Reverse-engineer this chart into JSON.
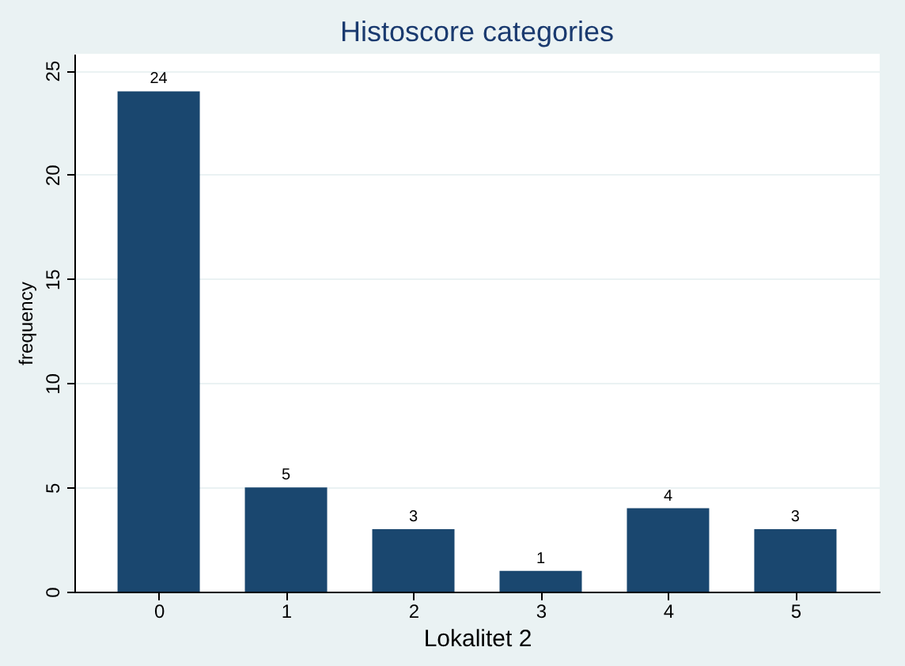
{
  "chart_data": {
    "type": "bar",
    "title": "Histoscore categories",
    "xlabel": "Lokalitet 2",
    "ylabel": "frequency",
    "categories": [
      "0",
      "1",
      "2",
      "3",
      "4",
      "5"
    ],
    "values": [
      24,
      5,
      3,
      1,
      4,
      3
    ],
    "color": "#1a476f",
    "ylim": [
      0,
      25.8
    ],
    "yticks": [
      0,
      5,
      10,
      15,
      20,
      25
    ],
    "grid": "y",
    "data_labels": true
  }
}
